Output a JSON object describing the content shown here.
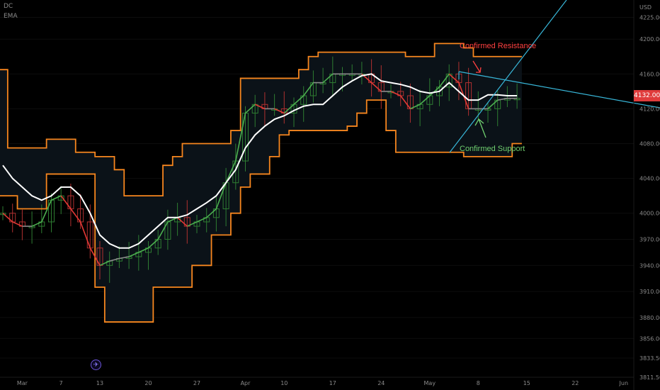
{
  "indicators": [
    "DC",
    "EMA"
  ],
  "currency": "USD",
  "last_price": "4132.00",
  "event_icon": "airplane-icon",
  "annotations": {
    "resistance": "Confirmed Resistance",
    "support": "Confirmed Support"
  },
  "colors": {
    "background": "#000000",
    "channel_band": "#f7861e",
    "channel_fill": "#0b1218",
    "ema": "#ffffff",
    "basis_up": "#4caf50",
    "basis_down": "#e53935",
    "basis_flat": "#8c8c8c",
    "candle_up": "#2e7d32",
    "candle_down": "#b03030",
    "trendline": "#38b6d8",
    "resistance_text": "#ff4040",
    "support_text": "#6fcf6f",
    "last_price_bg": "#e03c3c"
  },
  "chart_data": {
    "type": "line",
    "title": "",
    "ylim": [
      3811.5,
      4245
    ],
    "y_ticks": [
      "4225.00",
      "4200.00",
      "4160.00",
      "4120.00",
      "4080.00",
      "4040.00",
      "4000.00",
      "3970.00",
      "3940.00",
      "3910.00",
      "3880.00",
      "3856.00",
      "3833.50",
      "3811.50"
    ],
    "x_ticks": [
      "Mar",
      "7",
      "13",
      "20",
      "27",
      "Apr",
      "10",
      "17",
      "24",
      "May",
      "8",
      "15",
      "22",
      "Jun"
    ],
    "x": [
      "Feb 27",
      "Feb 28",
      "Mar 1",
      "Mar 2",
      "Mar 3",
      "Mar 6",
      "Mar 7",
      "Mar 8",
      "Mar 9",
      "Mar 10",
      "Mar 13",
      "Mar 14",
      "Mar 15",
      "Mar 16",
      "Mar 17",
      "Mar 20",
      "Mar 21",
      "Mar 22",
      "Mar 23",
      "Mar 24",
      "Mar 27",
      "Mar 28",
      "Mar 29",
      "Mar 30",
      "Mar 31",
      "Apr 3",
      "Apr 4",
      "Apr 5",
      "Apr 6",
      "Apr 10",
      "Apr 11",
      "Apr 12",
      "Apr 13",
      "Apr 14",
      "Apr 17",
      "Apr 18",
      "Apr 19",
      "Apr 20",
      "Apr 21",
      "Apr 24",
      "Apr 25",
      "Apr 26",
      "Apr 27",
      "Apr 28",
      "May 1",
      "May 2",
      "May 3",
      "May 4",
      "May 5",
      "May 8",
      "May 9",
      "May 10",
      "May 11",
      "May 12"
    ],
    "series": [
      {
        "name": "DC",
        "values": [
          4020,
          4020,
          4005,
          4005,
          4005,
          4045,
          4045,
          4045,
          4045,
          4045,
          3915,
          3875,
          3875,
          3875,
          3875,
          3875,
          3915,
          3915,
          3915,
          3915,
          3940,
          3940,
          3975,
          3975,
          4000,
          4030,
          4045,
          4045,
          4065,
          4090,
          4095,
          4095,
          4095,
          4095,
          4095,
          4095,
          4100,
          4115,
          4130,
          4130,
          4095,
          4070,
          4070,
          4070,
          4070,
          4070,
          4070,
          4070,
          4065,
          4065,
          4065,
          4065,
          4065,
          4080
        ]
      },
      {
        "name": "DC",
        "values": [
          4165,
          4075,
          4075,
          4075,
          4075,
          4085,
          4085,
          4085,
          4070,
          4070,
          4065,
          4065,
          4050,
          4020,
          4020,
          4020,
          4020,
          4055,
          4065,
          4080,
          4080,
          4080,
          4080,
          4080,
          4095,
          4155,
          4155,
          4155,
          4155,
          4155,
          4155,
          4165,
          4180,
          4185,
          4185,
          4185,
          4185,
          4185,
          4185,
          4185,
          4185,
          4185,
          4180,
          4180,
          4180,
          4195,
          4195,
          4195,
          4190,
          4180,
          4180,
          4180,
          4180,
          4180
        ]
      },
      {
        "name": "EMA",
        "values": [
          4055,
          4040,
          4030,
          4020,
          4015,
          4020,
          4030,
          4030,
          4020,
          4000,
          3975,
          3965,
          3960,
          3960,
          3965,
          3975,
          3985,
          3995,
          3995,
          3998,
          4005,
          4012,
          4020,
          4035,
          4050,
          4075,
          4090,
          4100,
          4108,
          4112,
          4118,
          4123,
          4125,
          4125,
          4135,
          4145,
          4152,
          4158,
          4160,
          4152,
          4150,
          4148,
          4145,
          4140,
          4138,
          4140,
          4150,
          4140,
          4130,
          4130,
          4136,
          4136,
          4135,
          4135
        ]
      },
      {
        "name": "DC",
        "values": [
          4000,
          3990,
          3985,
          3985,
          3990,
          4015,
          4020,
          4005,
          3990,
          3960,
          3940,
          3945,
          3948,
          3950,
          3955,
          3960,
          3970,
          3990,
          3995,
          3985,
          3990,
          3995,
          4005,
          4035,
          4060,
          4115,
          4125,
          4120,
          4120,
          4115,
          4125,
          4135,
          4150,
          4150,
          4160,
          4160,
          4160,
          4160,
          4150,
          4140,
          4140,
          4135,
          4120,
          4125,
          4135,
          4145,
          4160,
          4150,
          4120,
          4120,
          4120,
          4130,
          4132,
          4132
        ]
      }
    ],
    "annotation_markers": [
      {
        "text": "Confirmed Resistance",
        "x": "May 8",
        "y": 4170
      },
      {
        "text": "Confirmed Support",
        "x": "May 8",
        "y": 4080
      }
    ]
  }
}
